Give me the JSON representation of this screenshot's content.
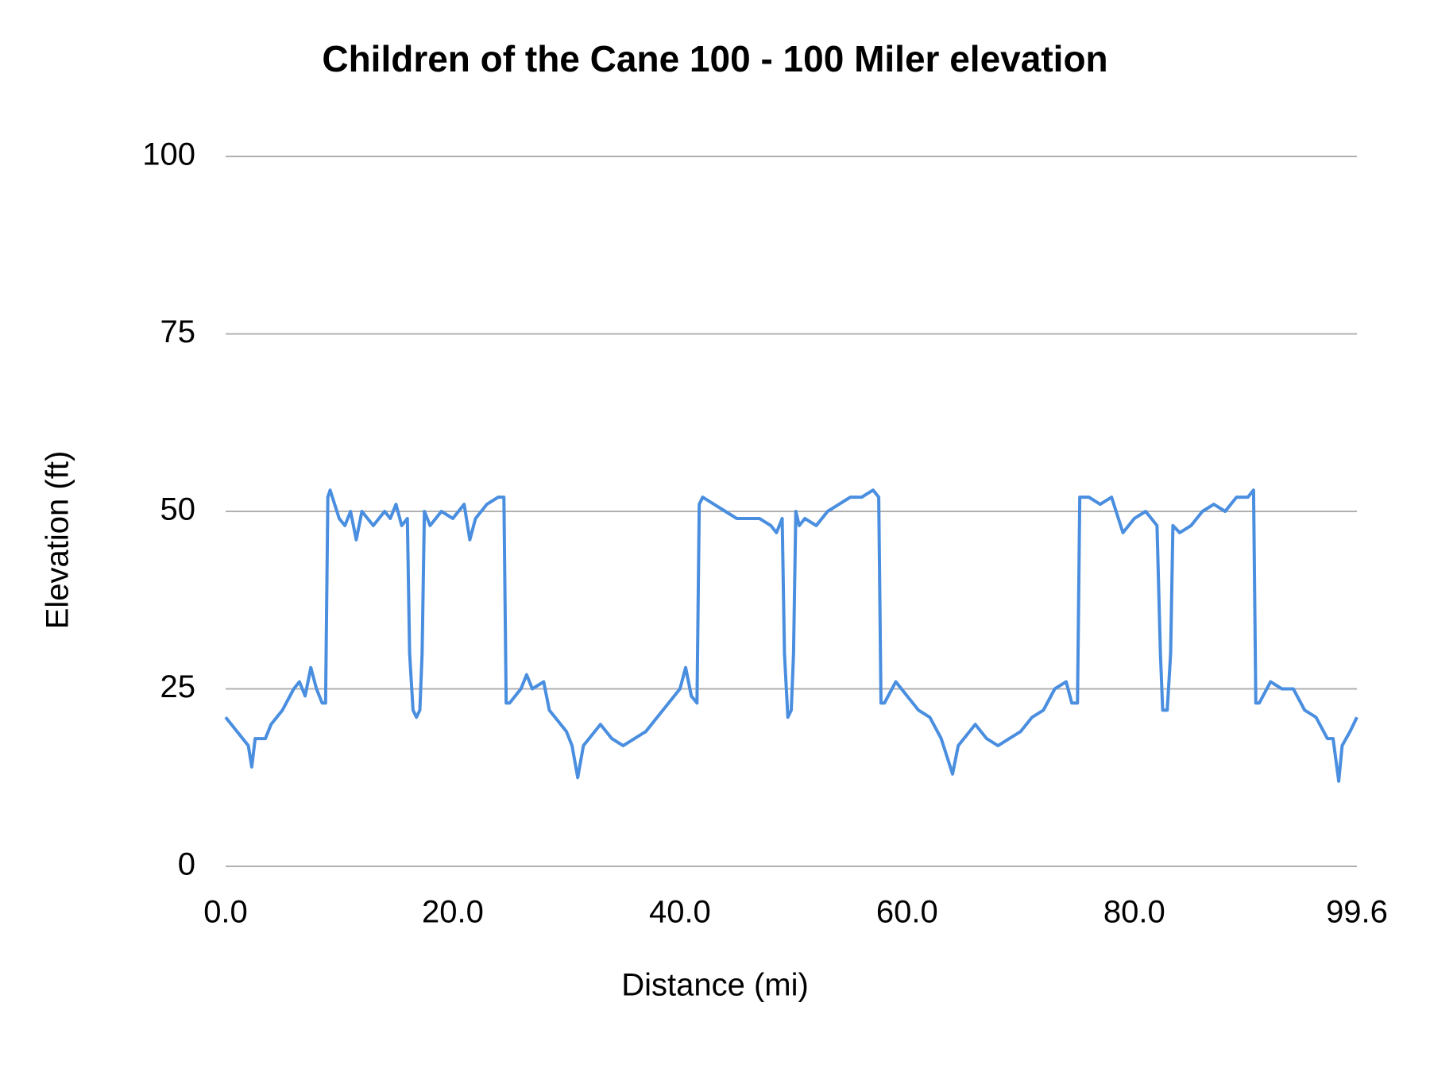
{
  "chart_data": {
    "type": "line",
    "title": "Children of the Cane 100 - 100 Miler elevation",
    "x_label": "Distance (mi)",
    "y_label": "Elevation (ft)",
    "color": "#4a8ee0",
    "grid": true,
    "xlim": [
      0,
      99.6
    ],
    "xticks": [
      {
        "value": 0,
        "label": "0.0"
      },
      {
        "value": 20,
        "label": "20.0"
      },
      {
        "value": 40,
        "label": "40.0"
      },
      {
        "value": 60,
        "label": "60.0"
      },
      {
        "value": 80,
        "label": "80.0"
      },
      99.6
    ],
    "ylim": [
      0,
      100
    ],
    "yticks": [
      0,
      25,
      50,
      75,
      100
    ],
    "x": [
      0,
      1,
      2,
      2.3,
      2.6,
      3.5,
      4,
      5,
      6,
      6.5,
      7,
      7.5,
      8,
      8.5,
      8.8,
      9,
      9.2,
      10,
      10.5,
      11,
      11.5,
      12,
      13,
      14,
      14.5,
      15,
      15.5,
      16,
      16.2,
      16.5,
      16.8,
      17.1,
      17.3,
      17.5,
      18,
      19,
      20,
      21,
      21.5,
      22,
      23,
      24,
      24.5,
      24.7,
      25,
      26,
      26.5,
      27,
      28,
      28.5,
      29,
      30,
      30.5,
      31,
      31.5,
      32,
      33,
      34,
      35,
      36,
      37,
      38,
      39,
      40,
      40.5,
      41,
      41.5,
      41.7,
      42,
      43,
      44,
      45,
      46,
      47,
      48,
      48.5,
      49,
      49.2,
      49.5,
      49.8,
      50,
      50.2,
      50.5,
      51,
      52,
      53,
      54,
      55,
      56,
      57,
      57.5,
      57.7,
      58,
      59,
      60,
      61,
      62,
      63,
      64,
      64.5,
      65,
      66,
      67,
      68,
      69,
      70,
      71,
      72,
      73,
      74,
      74.5,
      75,
      75.2,
      76,
      77,
      78,
      79,
      80,
      81,
      82,
      82.3,
      82.5,
      82.9,
      83.2,
      83.4,
      84,
      85,
      86,
      87,
      88,
      89,
      90,
      90.5,
      90.7,
      91,
      92,
      93,
      94,
      95,
      96,
      97,
      97.5,
      98,
      98.3,
      99,
      99.6
    ],
    "values": [
      21,
      19,
      17,
      14,
      18,
      18,
      20,
      22,
      25,
      26,
      24,
      28,
      25,
      23,
      23,
      52,
      53,
      49,
      48,
      50,
      46,
      50,
      48,
      50,
      49,
      51,
      48,
      49,
      30,
      22,
      21,
      22,
      30,
      50,
      48,
      50,
      49,
      51,
      46,
      49,
      51,
      52,
      52,
      23,
      23,
      25,
      27,
      25,
      26,
      22,
      21,
      19,
      17,
      12.5,
      17,
      18,
      20,
      18,
      17,
      18,
      19,
      21,
      23,
      25,
      28,
      24,
      23,
      51,
      52,
      51,
      50,
      49,
      49,
      49,
      48,
      47,
      49,
      30,
      21,
      22,
      30,
      50,
      48,
      49,
      48,
      50,
      51,
      52,
      52,
      53,
      52,
      23,
      23,
      26,
      24,
      22,
      21,
      18,
      13,
      17,
      18,
      20,
      18,
      17,
      18,
      19,
      21,
      22,
      25,
      26,
      23,
      23,
      52,
      52,
      51,
      52,
      47,
      49,
      50,
      48,
      30,
      22,
      22,
      30,
      48,
      47,
      48,
      50,
      51,
      50,
      52,
      52,
      53,
      23,
      23,
      26,
      25,
      25,
      22,
      21,
      18,
      18,
      12,
      17,
      19,
      21
    ]
  }
}
